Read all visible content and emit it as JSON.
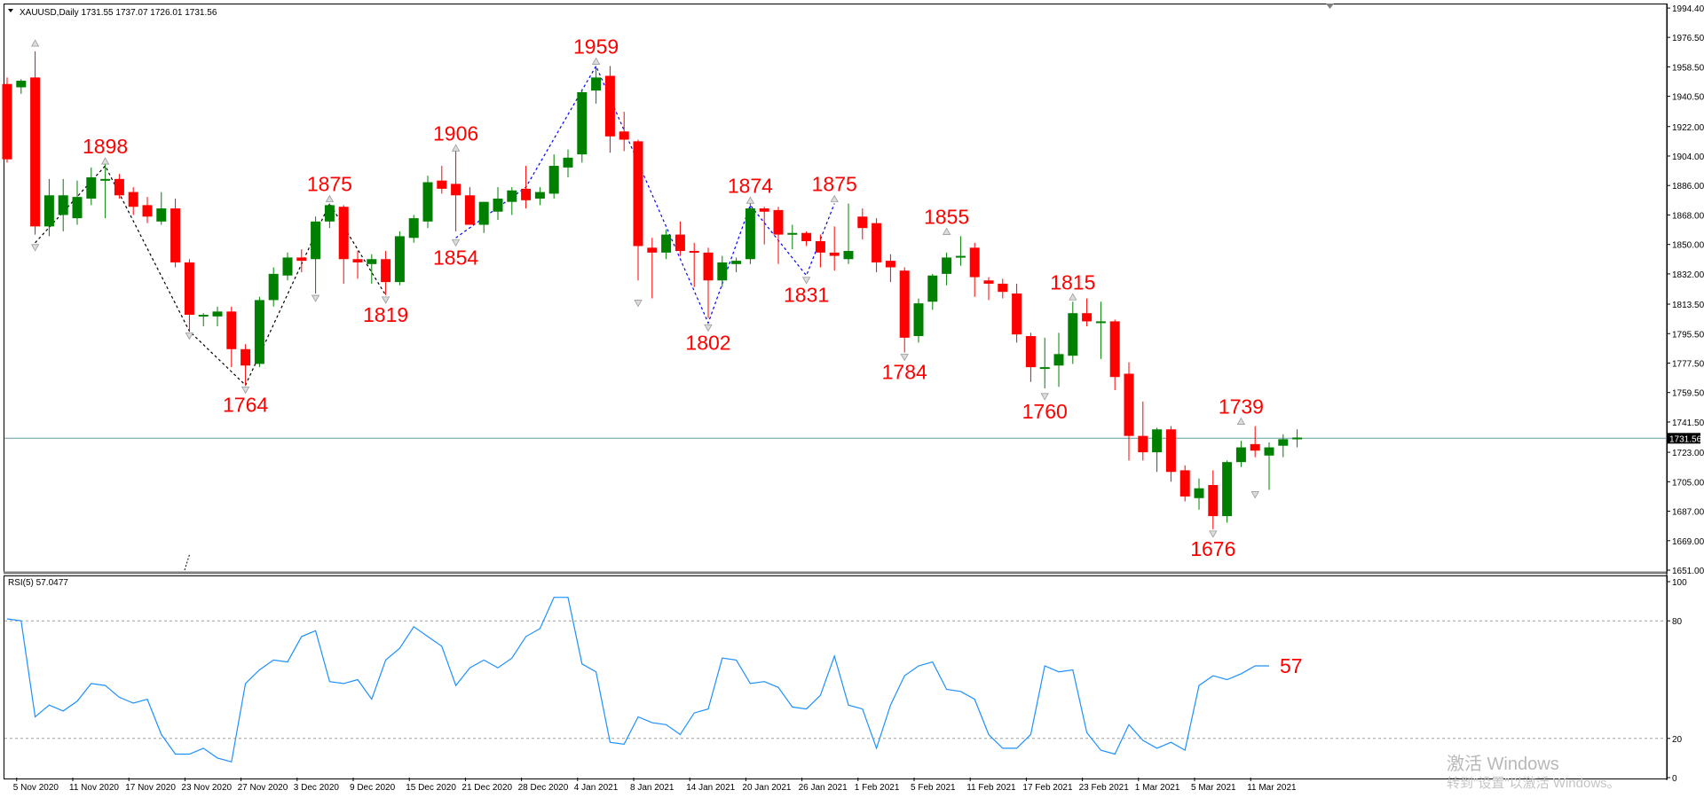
{
  "chart_data": {
    "type": "candlestick",
    "symbol_header": "XAUUSD,Daily  1731.55 1737.07 1726.01 1731.56",
    "current_price_label": "1731.56",
    "current_price": 1731.56,
    "price_axis": {
      "ylim": [
        1651,
        1995
      ],
      "ticks": [
        "1994.40",
        "1976.50",
        "1958.50",
        "1940.50",
        "1922.00",
        "1904.00",
        "1886.00",
        "1868.00",
        "1850.00",
        "1832.00",
        "1813.50",
        "1795.50",
        "1777.50",
        "1759.50",
        "1741.50",
        "1723.00",
        "1705.00",
        "1687.00",
        "1669.00",
        "1651.00"
      ]
    },
    "date_labels": [
      {
        "label": "5 Nov 2020",
        "index": 1
      },
      {
        "label": "11 Nov 2020",
        "index": 5
      },
      {
        "label": "17 Nov 2020",
        "index": 9
      },
      {
        "label": "23 Nov 2020",
        "index": 13
      },
      {
        "label": "27 Nov 2020",
        "index": 17
      },
      {
        "label": "3 Dec 2020",
        "index": 21
      },
      {
        "label": "9 Dec 2020",
        "index": 25
      },
      {
        "label": "15 Dec 2020",
        "index": 29
      },
      {
        "label": "21 Dec 2020",
        "index": 33
      },
      {
        "label": "28 Dec 2020",
        "index": 37
      },
      {
        "label": "4 Jan 2021",
        "index": 41
      },
      {
        "label": "8 Jan 2021",
        "index": 45
      },
      {
        "label": "14 Jan 2021",
        "index": 49
      },
      {
        "label": "20 Jan 2021",
        "index": 53
      },
      {
        "label": "26 Jan 2021",
        "index": 57
      },
      {
        "label": "1 Feb 2021",
        "index": 61
      },
      {
        "label": "5 Feb 2021",
        "index": 65
      },
      {
        "label": "11 Feb 2021",
        "index": 69
      },
      {
        "label": "17 Feb 2021",
        "index": 73
      },
      {
        "label": "23 Feb 2021",
        "index": 77
      },
      {
        "label": "1 Mar 2021",
        "index": 81
      },
      {
        "label": "5 Mar 2021",
        "index": 85
      },
      {
        "label": "11 Mar 2021",
        "index": 89
      }
    ],
    "candles": [
      {
        "o": 1948,
        "h": 1952,
        "l": 1900,
        "c": 1902
      },
      {
        "o": 1946,
        "h": 1951,
        "l": 1942,
        "c": 1950
      },
      {
        "o": 1952,
        "h": 1968,
        "l": 1856,
        "c": 1861
      },
      {
        "o": 1861,
        "h": 1890,
        "l": 1855,
        "c": 1880
      },
      {
        "o": 1868,
        "h": 1890,
        "l": 1858,
        "c": 1880
      },
      {
        "o": 1866,
        "h": 1889,
        "l": 1862,
        "c": 1879
      },
      {
        "o": 1878,
        "h": 1897,
        "l": 1874,
        "c": 1891
      },
      {
        "o": 1890,
        "h": 1902,
        "l": 1866,
        "c": 1890
      },
      {
        "o": 1890,
        "h": 1893,
        "l": 1878,
        "c": 1880
      },
      {
        "o": 1882,
        "h": 1885,
        "l": 1868,
        "c": 1873
      },
      {
        "o": 1874,
        "h": 1879,
        "l": 1863,
        "c": 1867
      },
      {
        "o": 1864,
        "h": 1882,
        "l": 1862,
        "c": 1872
      },
      {
        "o": 1872,
        "h": 1878,
        "l": 1836,
        "c": 1839
      },
      {
        "o": 1839,
        "h": 1841,
        "l": 1797,
        "c": 1807
      },
      {
        "o": 1806,
        "h": 1808,
        "l": 1800,
        "c": 1807
      },
      {
        "o": 1806,
        "h": 1812,
        "l": 1800,
        "c": 1809
      },
      {
        "o": 1809,
        "h": 1812,
        "l": 1775,
        "c": 1786
      },
      {
        "o": 1786,
        "h": 1789,
        "l": 1764,
        "c": 1776
      },
      {
        "o": 1777,
        "h": 1818,
        "l": 1775,
        "c": 1816
      },
      {
        "o": 1816,
        "h": 1836,
        "l": 1812,
        "c": 1832
      },
      {
        "o": 1831,
        "h": 1845,
        "l": 1828,
        "c": 1842
      },
      {
        "o": 1842,
        "h": 1847,
        "l": 1833,
        "c": 1840
      },
      {
        "o": 1841,
        "h": 1867,
        "l": 1820,
        "c": 1864
      },
      {
        "o": 1864,
        "h": 1875,
        "l": 1860,
        "c": 1874
      },
      {
        "o": 1873,
        "h": 1874,
        "l": 1826,
        "c": 1841
      },
      {
        "o": 1841,
        "h": 1846,
        "l": 1829,
        "c": 1839
      },
      {
        "o": 1838,
        "h": 1844,
        "l": 1826,
        "c": 1841
      },
      {
        "o": 1841,
        "h": 1846,
        "l": 1819,
        "c": 1827
      },
      {
        "o": 1827,
        "h": 1858,
        "l": 1825,
        "c": 1855
      },
      {
        "o": 1854,
        "h": 1868,
        "l": 1851,
        "c": 1866
      },
      {
        "o": 1864,
        "h": 1892,
        "l": 1860,
        "c": 1888
      },
      {
        "o": 1889,
        "h": 1898,
        "l": 1881,
        "c": 1884
      },
      {
        "o": 1887,
        "h": 1907,
        "l": 1858,
        "c": 1880
      },
      {
        "o": 1880,
        "h": 1885,
        "l": 1864,
        "c": 1862
      },
      {
        "o": 1862,
        "h": 1876,
        "l": 1857,
        "c": 1876
      },
      {
        "o": 1870,
        "h": 1885,
        "l": 1865,
        "c": 1878
      },
      {
        "o": 1876,
        "h": 1885,
        "l": 1868,
        "c": 1883
      },
      {
        "o": 1884,
        "h": 1898,
        "l": 1872,
        "c": 1877
      },
      {
        "o": 1878,
        "h": 1885,
        "l": 1874,
        "c": 1882
      },
      {
        "o": 1881,
        "h": 1905,
        "l": 1878,
        "c": 1898
      },
      {
        "o": 1897,
        "h": 1908,
        "l": 1891,
        "c": 1903
      },
      {
        "o": 1905,
        "h": 1945,
        "l": 1900,
        "c": 1943
      },
      {
        "o": 1944,
        "h": 1959,
        "l": 1936,
        "c": 1952
      },
      {
        "o": 1953,
        "h": 1959,
        "l": 1906,
        "c": 1916
      },
      {
        "o": 1919,
        "h": 1931,
        "l": 1907,
        "c": 1914
      },
      {
        "o": 1913,
        "h": 1914,
        "l": 1828,
        "c": 1849
      },
      {
        "o": 1848,
        "h": 1854,
        "l": 1817,
        "c": 1845
      },
      {
        "o": 1845,
        "h": 1859,
        "l": 1841,
        "c": 1856
      },
      {
        "o": 1856,
        "h": 1864,
        "l": 1843,
        "c": 1846
      },
      {
        "o": 1846,
        "h": 1851,
        "l": 1824,
        "c": 1845
      },
      {
        "o": 1845,
        "h": 1848,
        "l": 1805,
        "c": 1828
      },
      {
        "o": 1828,
        "h": 1843,
        "l": 1824,
        "c": 1839
      },
      {
        "o": 1838,
        "h": 1842,
        "l": 1833,
        "c": 1840
      },
      {
        "o": 1841,
        "h": 1875,
        "l": 1838,
        "c": 1872
      },
      {
        "o": 1872,
        "h": 1873,
        "l": 1850,
        "c": 1870
      },
      {
        "o": 1871,
        "h": 1873,
        "l": 1838,
        "c": 1856
      },
      {
        "o": 1856,
        "h": 1862,
        "l": 1847,
        "c": 1857
      },
      {
        "o": 1857,
        "h": 1858,
        "l": 1849,
        "c": 1852
      },
      {
        "o": 1852,
        "h": 1856,
        "l": 1836,
        "c": 1845
      },
      {
        "o": 1845,
        "h": 1861,
        "l": 1834,
        "c": 1843
      },
      {
        "o": 1841,
        "h": 1875,
        "l": 1838,
        "c": 1846
      },
      {
        "o": 1867,
        "h": 1872,
        "l": 1853,
        "c": 1860
      },
      {
        "o": 1863,
        "h": 1866,
        "l": 1833,
        "c": 1839
      },
      {
        "o": 1840,
        "h": 1844,
        "l": 1827,
        "c": 1836
      },
      {
        "o": 1834,
        "h": 1836,
        "l": 1784,
        "c": 1793
      },
      {
        "o": 1794,
        "h": 1817,
        "l": 1790,
        "c": 1814
      },
      {
        "o": 1815,
        "h": 1832,
        "l": 1810,
        "c": 1831
      },
      {
        "o": 1832,
        "h": 1845,
        "l": 1825,
        "c": 1842
      },
      {
        "o": 1842,
        "h": 1855,
        "l": 1837,
        "c": 1843
      },
      {
        "o": 1848,
        "h": 1851,
        "l": 1818,
        "c": 1830
      },
      {
        "o": 1828,
        "h": 1830,
        "l": 1816,
        "c": 1826
      },
      {
        "o": 1826,
        "h": 1829,
        "l": 1817,
        "c": 1821
      },
      {
        "o": 1820,
        "h": 1826,
        "l": 1790,
        "c": 1795
      },
      {
        "o": 1794,
        "h": 1796,
        "l": 1766,
        "c": 1775
      },
      {
        "o": 1775,
        "h": 1793,
        "l": 1762,
        "c": 1775
      },
      {
        "o": 1776,
        "h": 1796,
        "l": 1763,
        "c": 1783
      },
      {
        "o": 1782,
        "h": 1815,
        "l": 1777,
        "c": 1808
      },
      {
        "o": 1808,
        "h": 1817,
        "l": 1800,
        "c": 1803
      },
      {
        "o": 1803,
        "h": 1815,
        "l": 1780,
        "c": 1803
      },
      {
        "o": 1803,
        "h": 1804,
        "l": 1761,
        "c": 1769
      },
      {
        "o": 1771,
        "h": 1778,
        "l": 1718,
        "c": 1733
      },
      {
        "o": 1733,
        "h": 1754,
        "l": 1718,
        "c": 1723
      },
      {
        "o": 1723,
        "h": 1738,
        "l": 1711,
        "c": 1737
      },
      {
        "o": 1737,
        "h": 1739,
        "l": 1705,
        "c": 1711
      },
      {
        "o": 1712,
        "h": 1715,
        "l": 1693,
        "c": 1696
      },
      {
        "o": 1695,
        "h": 1707,
        "l": 1688,
        "c": 1701
      },
      {
        "o": 1703,
        "h": 1712,
        "l": 1676,
        "c": 1684
      },
      {
        "o": 1684,
        "h": 1718,
        "l": 1680,
        "c": 1717
      },
      {
        "o": 1717,
        "h": 1730,
        "l": 1714,
        "c": 1726
      },
      {
        "o": 1728,
        "h": 1739,
        "l": 1720,
        "c": 1724
      },
      {
        "o": 1721,
        "h": 1729,
        "l": 1700,
        "c": 1726
      },
      {
        "o": 1727,
        "h": 1734,
        "l": 1720,
        "c": 1731
      },
      {
        "o": 1731,
        "h": 1737,
        "l": 1726,
        "c": 1732
      }
    ],
    "swing_points": [
      {
        "index": 2,
        "price": 1970,
        "label": "",
        "dir": "up"
      },
      {
        "index": 2,
        "price": 1851,
        "label": "",
        "dir": "down"
      },
      {
        "index": 7,
        "price": 1898,
        "label": "1898",
        "dir": "up"
      },
      {
        "index": 13,
        "price": 1797,
        "label": "",
        "dir": "down"
      },
      {
        "index": 17,
        "price": 1764,
        "label": "1764",
        "dir": "down"
      },
      {
        "index": 23,
        "price": 1875,
        "label": "1875",
        "dir": "up"
      },
      {
        "index": 22,
        "price": 1820,
        "label": "",
        "dir": "down"
      },
      {
        "index": 27,
        "price": 1819,
        "label": "1819",
        "dir": "down"
      },
      {
        "index": 32,
        "price": 1906,
        "label": "1906",
        "dir": "up"
      },
      {
        "index": 32,
        "price": 1854,
        "label": "1854",
        "dir": "down"
      },
      {
        "index": 42,
        "price": 1959,
        "label": "1959",
        "dir": "up"
      },
      {
        "index": 45,
        "price": 1817,
        "label": "",
        "dir": "down"
      },
      {
        "index": 50,
        "price": 1802,
        "label": "1802",
        "dir": "down"
      },
      {
        "index": 53,
        "price": 1874,
        "label": "1874",
        "dir": "up"
      },
      {
        "index": 57,
        "price": 1831,
        "label": "1831",
        "dir": "down"
      },
      {
        "index": 59,
        "price": 1875,
        "label": "1875",
        "dir": "up"
      },
      {
        "index": 64,
        "price": 1784,
        "label": "1784",
        "dir": "down"
      },
      {
        "index": 67,
        "price": 1855,
        "label": "1855",
        "dir": "up"
      },
      {
        "index": 74,
        "price": 1760,
        "label": "1760",
        "dir": "down"
      },
      {
        "index": 76,
        "price": 1815,
        "label": "1815",
        "dir": "up"
      },
      {
        "index": 86,
        "price": 1676,
        "label": "1676",
        "dir": "down"
      },
      {
        "index": 88,
        "price": 1739,
        "label": "1739",
        "dir": "up"
      },
      {
        "index": 89,
        "price": 1700,
        "label": "",
        "dir": "down"
      }
    ],
    "zigzag_blue": [
      {
        "index": 32,
        "price": 1854
      },
      {
        "index": 37,
        "price": 1885
      },
      {
        "index": 42,
        "price": 1959
      },
      {
        "index": 50,
        "price": 1802
      },
      {
        "index": 53,
        "price": 1874
      },
      {
        "index": 57,
        "price": 1831
      },
      {
        "index": 59,
        "price": 1875
      }
    ],
    "zigzag_black": [
      {
        "index": 2,
        "price": 1851
      },
      {
        "index": 7,
        "price": 1898
      },
      {
        "index": 13,
        "price": 1797
      },
      {
        "index": 17,
        "price": 1764
      },
      {
        "index": 23,
        "price": 1875
      },
      {
        "index": 27,
        "price": 1819
      }
    ],
    "rsi": {
      "label": "RSI(5) 57.0477",
      "levels": [
        80,
        20
      ],
      "ylim": [
        0,
        100
      ],
      "ticks": [
        "100",
        "80",
        "20",
        "0"
      ],
      "last_label": "57",
      "values": [
        81,
        80,
        31,
        37,
        34,
        39,
        48,
        47,
        41,
        38,
        40,
        22,
        12,
        12,
        15,
        10,
        8,
        48,
        55,
        60,
        59,
        72,
        75,
        49,
        48,
        50,
        40,
        60,
        66,
        77,
        72,
        67,
        47,
        56,
        60,
        56,
        61,
        72,
        76,
        92,
        92,
        58,
        54,
        18,
        17,
        31,
        28,
        27,
        22,
        33,
        35,
        61,
        60,
        48,
        49,
        46,
        36,
        35,
        42,
        62,
        37,
        35,
        15,
        37,
        52,
        57,
        59,
        45,
        44,
        40,
        22,
        15,
        15,
        22,
        57,
        54,
        55,
        23,
        14,
        12,
        27,
        19,
        15,
        18,
        14,
        47,
        52,
        50,
        53,
        57,
        57
      ]
    }
  },
  "watermark": {
    "line1": "激活 Windows",
    "line2": "转到\"设置\"以激活 Windows。"
  },
  "colors": {
    "bull": "#008000",
    "bear": "#ff0000",
    "rsi_line": "#1e90ff",
    "annotation": "#ff0000",
    "zigzag_blue": "#0000ff",
    "zigzag_black": "#000000"
  }
}
